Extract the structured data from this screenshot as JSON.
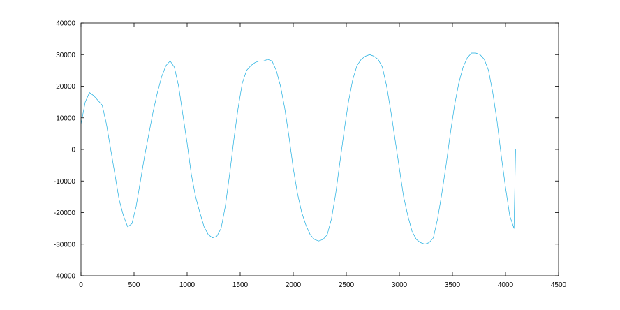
{
  "chart_data": {
    "type": "line",
    "title": "",
    "xlabel": "",
    "ylabel": "",
    "xlim": [
      0,
      4500
    ],
    "ylim": [
      -40000,
      40000
    ],
    "grid": false,
    "legend": "none",
    "xticks": [
      0,
      500,
      1000,
      1500,
      2000,
      2500,
      3000,
      3500,
      4000,
      4500
    ],
    "yticks": [
      -40000,
      -30000,
      -20000,
      -10000,
      0,
      10000,
      20000,
      30000,
      40000
    ],
    "xtick_labels": [
      "0",
      "500",
      "1000",
      "1500",
      "2000",
      "2500",
      "3000",
      "3500",
      "4000",
      "4500"
    ],
    "ytick_labels": [
      "-40000",
      "-30000",
      "-20000",
      "-10000",
      "0",
      "10000",
      "20000",
      "30000",
      "40000"
    ],
    "series": [
      {
        "color": "#1eaee0",
        "x": [
          0,
          40,
          80,
          120,
          160,
          200,
          240,
          280,
          320,
          360,
          400,
          440,
          480,
          520,
          560,
          600,
          640,
          680,
          720,
          760,
          800,
          840,
          880,
          920,
          960,
          1000,
          1040,
          1080,
          1120,
          1160,
          1200,
          1240,
          1280,
          1320,
          1360,
          1400,
          1440,
          1480,
          1520,
          1560,
          1600,
          1640,
          1680,
          1720,
          1760,
          1800,
          1840,
          1880,
          1920,
          1960,
          2000,
          2040,
          2080,
          2120,
          2160,
          2200,
          2240,
          2280,
          2320,
          2360,
          2400,
          2440,
          2480,
          2520,
          2560,
          2600,
          2640,
          2680,
          2720,
          2760,
          2800,
          2840,
          2880,
          2920,
          2960,
          3000,
          3040,
          3080,
          3120,
          3160,
          3200,
          3240,
          3280,
          3320,
          3360,
          3400,
          3440,
          3480,
          3520,
          3560,
          3600,
          3640,
          3680,
          3720,
          3760,
          3800,
          3840,
          3880,
          3920,
          3960,
          4000,
          4040,
          4080,
          4095
        ],
        "y": [
          8000,
          15000,
          18000,
          17000,
          15500,
          14000,
          8000,
          0,
          -8000,
          -16000,
          -21000,
          -24500,
          -23500,
          -18000,
          -10000,
          -2000,
          5000,
          12000,
          18000,
          23000,
          26500,
          28000,
          26000,
          20000,
          11000,
          2000,
          -8000,
          -15000,
          -20000,
          -24500,
          -27000,
          -28000,
          -27500,
          -25000,
          -18000,
          -8000,
          3000,
          13000,
          21000,
          25000,
          26500,
          27500,
          28000,
          28000,
          28500,
          28000,
          25000,
          20000,
          13000,
          4000,
          -6000,
          -14000,
          -20000,
          -24000,
          -27000,
          -28500,
          -29000,
          -28500,
          -27000,
          -22000,
          -14000,
          -4000,
          6000,
          15000,
          22000,
          26500,
          28500,
          29500,
          30000,
          29500,
          28500,
          26000,
          20000,
          12000,
          3000,
          -6000,
          -15000,
          -21000,
          -26000,
          -28500,
          -29500,
          -30000,
          -29500,
          -28000,
          -22000,
          -14000,
          -5000,
          5000,
          14000,
          21000,
          26000,
          29000,
          30500,
          30500,
          30000,
          28500,
          25000,
          18000,
          9000,
          -2000,
          -12000,
          -21000,
          -25000,
          0
        ]
      }
    ]
  }
}
